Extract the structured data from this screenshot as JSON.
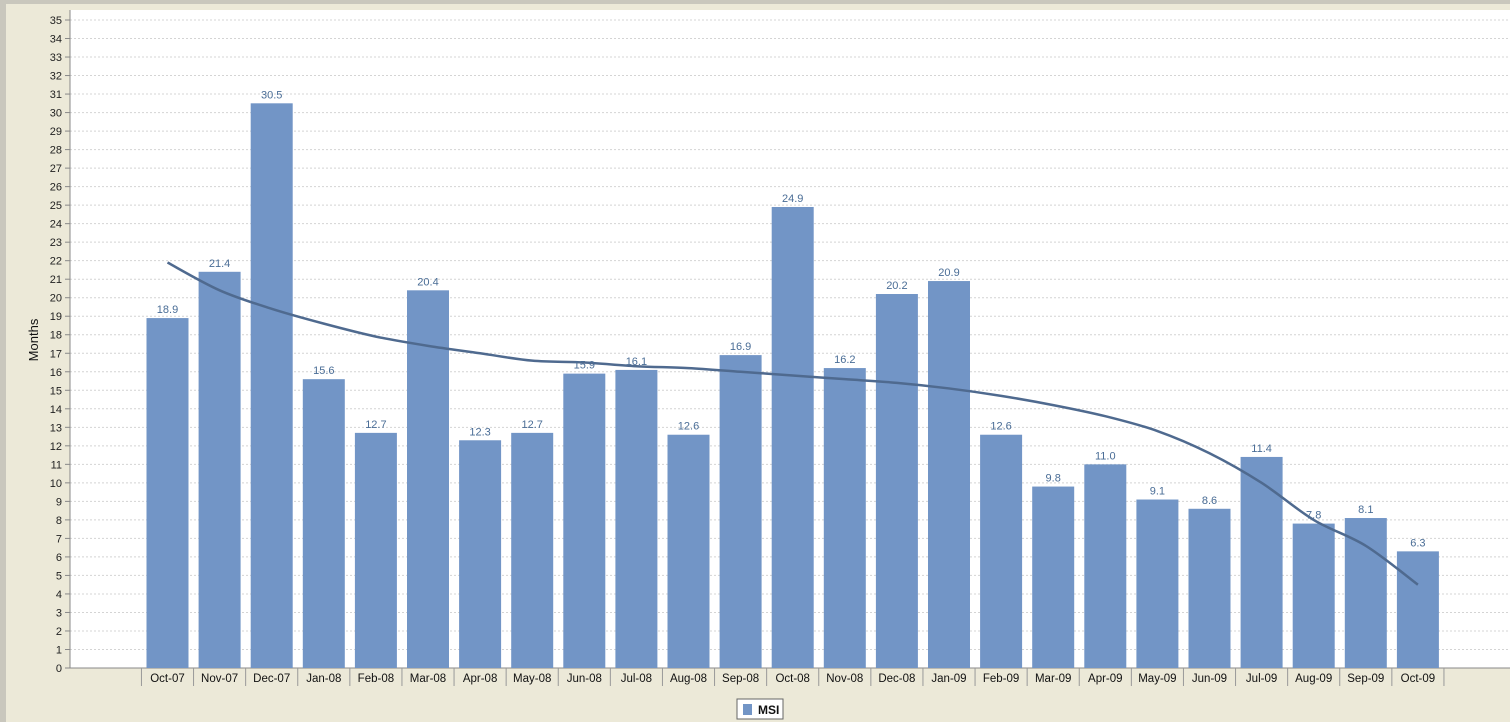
{
  "chart_data": {
    "type": "bar",
    "ylabel": "Months",
    "xlabel": "",
    "ylim": [
      0,
      35
    ],
    "grid": true,
    "legend_position": "bottom-center",
    "categories": [
      "Oct-07",
      "Nov-07",
      "Dec-07",
      "Jan-08",
      "Feb-08",
      "Mar-08",
      "Apr-08",
      "May-08",
      "Jun-08",
      "Jul-08",
      "Aug-08",
      "Sep-08",
      "Oct-08",
      "Nov-08",
      "Dec-08",
      "Jan-09",
      "Feb-09",
      "Mar-09",
      "Apr-09",
      "May-09",
      "Jun-09",
      "Jul-09",
      "Aug-09",
      "Sep-09",
      "Oct-09"
    ],
    "series": [
      {
        "name": "MSI",
        "type": "bar",
        "color": "#7295c6",
        "values": [
          18.9,
          21.4,
          30.5,
          15.6,
          12.7,
          20.4,
          12.3,
          12.7,
          15.9,
          16.1,
          12.6,
          16.9,
          24.9,
          16.2,
          20.2,
          20.9,
          12.6,
          9.8,
          11.0,
          9.1,
          8.6,
          11.4,
          7.8,
          8.1,
          6.3
        ],
        "labels": [
          "18.9",
          "21.4",
          "30.5",
          "15.6",
          "12.7",
          "20.4",
          "12.3",
          "12.7",
          "15.9",
          "16.1",
          "12.6",
          "16.9",
          "24.9",
          "16.2",
          "20.2",
          "20.9",
          "12.6",
          "9.8",
          "11.0",
          "9.1",
          "8.6",
          "11.4",
          "7.8",
          "8.1",
          "6.3"
        ]
      },
      {
        "type": "line",
        "color": "#4f6a8f",
        "values": [
          21.9,
          20.4,
          19.4,
          18.6,
          17.9,
          17.4,
          17.0,
          16.6,
          16.5,
          16.3,
          16.2,
          16.0,
          15.8,
          15.6,
          15.4,
          15.1,
          14.7,
          14.2,
          13.6,
          12.8,
          11.6,
          10.0,
          8.0,
          6.6,
          4.5
        ]
      }
    ]
  }
}
